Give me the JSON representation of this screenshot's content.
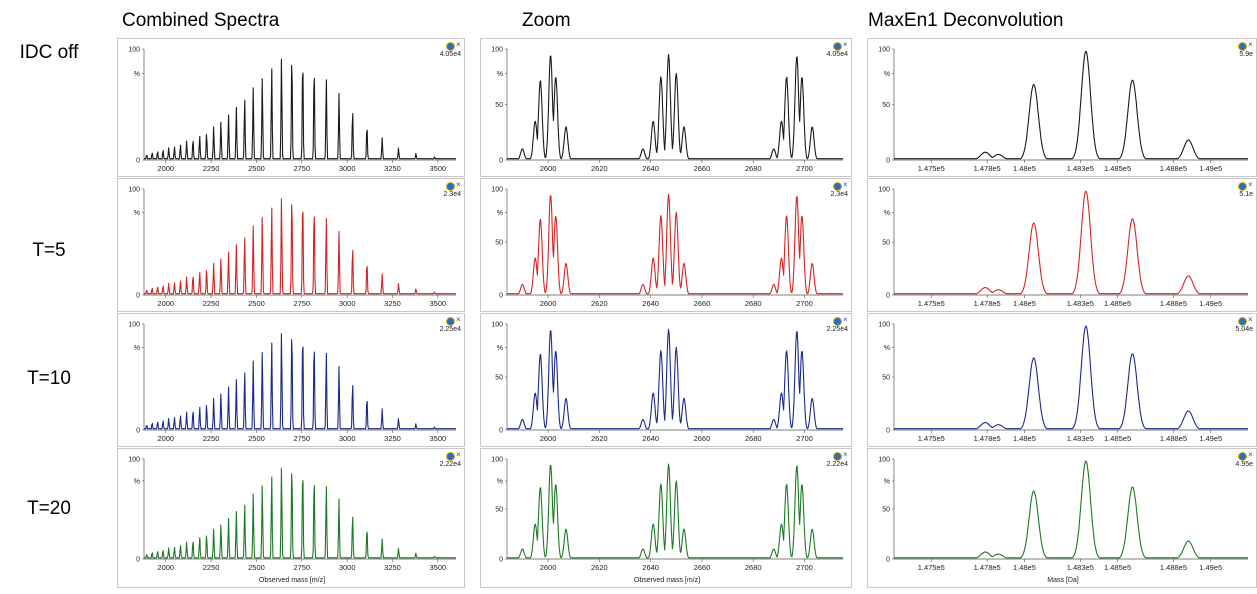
{
  "column_titles": [
    "Combined Spectra",
    "Zoom",
    "MaxEn1 Deconvolution"
  ],
  "row_labels": [
    "IDC off",
    "T=5",
    "T=10",
    "T=20"
  ],
  "row_colors": [
    "#1a1a1a",
    "#d42424",
    "#1b2a8c",
    "#1e7a26"
  ],
  "icon_names": [
    "software-logo-icon",
    "close-icon"
  ],
  "combined": {
    "x_ticks": [
      "2000",
      "2250",
      "2500",
      "2750",
      "3000",
      "3250",
      "3500"
    ],
    "intensities": [
      "4.05e4",
      "2.3e4",
      "2.25e4",
      "2.22e4"
    ],
    "x_title": "Observed mass [m/z]"
  },
  "zoom": {
    "x_ticks": [
      "2600",
      "2620",
      "2640",
      "2660",
      "2680",
      "2700"
    ],
    "intensities": [
      "4.05e4",
      "2.3e4",
      "2.25e4",
      "2.22e4"
    ],
    "x_title": "Observed mass [m/z]"
  },
  "deconv": {
    "x_ticks": [
      "1.475e5",
      "1.478e5",
      "1.48e5",
      "1.483e5",
      "1.485e5",
      "1.488e5",
      "1.49e5"
    ],
    "intensities": [
      "5.9e",
      "5.1e",
      "5.04e",
      "4.95e"
    ],
    "x_title": "Mass [Da]"
  },
  "y_ticks": [
    "100",
    "%",
    "50",
    "0"
  ],
  "chart_data": [
    {
      "type": "line",
      "title": "Combined Spectra",
      "xlabel": "Observed mass [m/z]",
      "ylabel": "%",
      "xlim": [
        1880,
        3600
      ],
      "ylim": [
        0,
        100
      ],
      "series": [
        {
          "name": "IDC off",
          "intensity": "4.05e4"
        },
        {
          "name": "T=5",
          "intensity": "2.3e4"
        },
        {
          "name": "T=10",
          "intensity": "2.25e4"
        },
        {
          "name": "T=20",
          "intensity": "2.22e4"
        }
      ],
      "peak_x": [
        1895,
        1925,
        1955,
        1985,
        2016,
        2048,
        2081,
        2115,
        2150,
        2187,
        2225,
        2264,
        2304,
        2346,
        2389,
        2435,
        2482,
        2532,
        2584,
        2638,
        2695,
        2755,
        2818,
        2885,
        2955,
        3030,
        3109,
        3193,
        3283,
        3379,
        3482
      ],
      "peak_y": [
        5,
        7,
        8,
        9,
        11,
        12,
        14,
        17,
        19,
        22,
        25,
        30,
        35,
        41,
        48,
        56,
        65,
        74,
        84,
        93,
        98,
        95,
        86,
        74,
        60,
        46,
        32,
        20,
        11,
        6,
        3
      ]
    },
    {
      "type": "line",
      "title": "Zoom",
      "xlabel": "Observed mass [m/z]",
      "ylabel": "%",
      "xlim": [
        2584,
        2715
      ],
      "ylim": [
        0,
        100
      ],
      "series": [
        {
          "name": "IDC off",
          "intensity": "4.05e4"
        },
        {
          "name": "T=5",
          "intensity": "2.3e4"
        },
        {
          "name": "T=10",
          "intensity": "2.25e4"
        },
        {
          "name": "T=20",
          "intensity": "2.22e4"
        }
      ],
      "peak_x": [
        2590,
        2595,
        2597,
        2601,
        2603,
        2607,
        2637,
        2641,
        2644,
        2647,
        2650,
        2653,
        2688,
        2691,
        2693,
        2697,
        2699,
        2703
      ],
      "peak_y": [
        10,
        35,
        72,
        95,
        75,
        30,
        10,
        35,
        75,
        95,
        78,
        30,
        10,
        35,
        75,
        94,
        75,
        30
      ]
    },
    {
      "type": "line",
      "title": "MaxEn1 Deconvolution",
      "xlabel": "Mass [Da]",
      "ylabel": "%",
      "xlim": [
        147300,
        149200
      ],
      "ylim": [
        0,
        100
      ],
      "series": [
        {
          "name": "IDC off",
          "intensity": "5.9e"
        },
        {
          "name": "T=5",
          "intensity": "5.1e"
        },
        {
          "name": "T=10",
          "intensity": "5.04e"
        },
        {
          "name": "T=20",
          "intensity": "4.95e"
        }
      ],
      "peak_x": [
        147790,
        147860,
        148050,
        148330,
        148580,
        148880
      ],
      "peak_y": [
        7,
        5,
        68,
        98,
        72,
        18
      ]
    }
  ]
}
